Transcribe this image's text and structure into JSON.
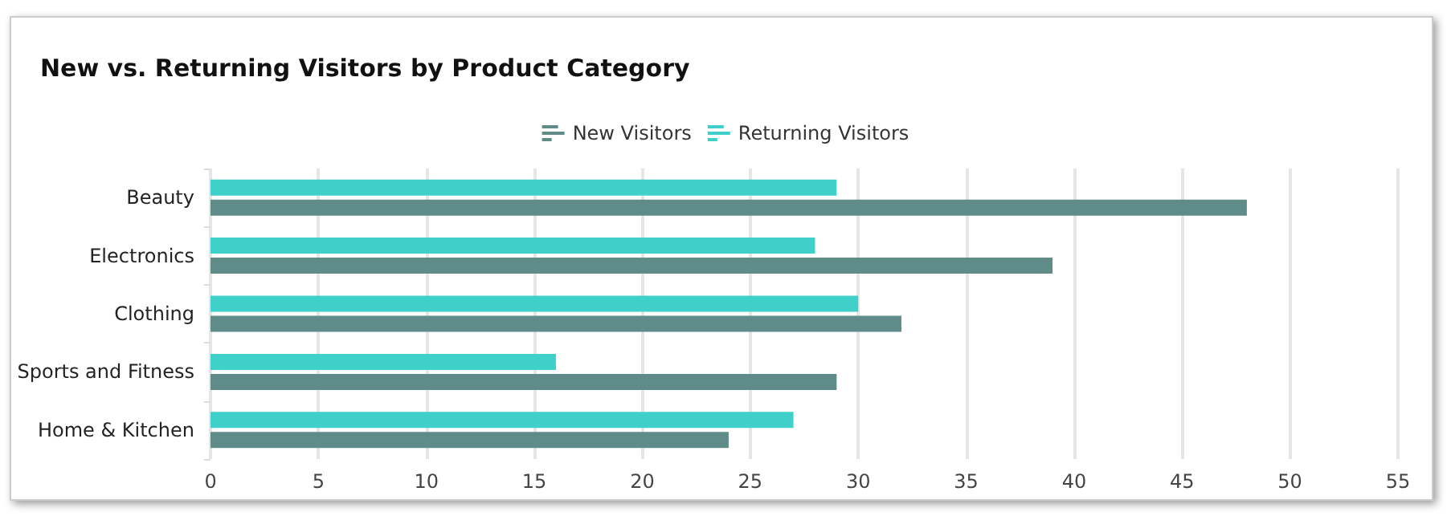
{
  "chart_data": {
    "type": "bar",
    "orientation": "horizontal",
    "title": "New vs. Returning Visitors by Product Category",
    "categories": [
      "Beauty",
      "Electronics",
      "Clothing",
      "Sports and Fitness",
      "Home & Kitchen"
    ],
    "series": [
      {
        "name": "New Visitors",
        "color": "#5f8c88",
        "values": [
          48,
          39,
          32,
          29,
          24
        ]
      },
      {
        "name": "Returning Visitors",
        "color": "#3fd0c9",
        "values": [
          29,
          28,
          30,
          16,
          27
        ]
      }
    ],
    "xlim": [
      0,
      55
    ],
    "xticks": [
      0,
      5,
      10,
      15,
      20,
      25,
      30,
      35,
      40,
      45,
      50,
      55
    ],
    "grid": "x",
    "legend": "top"
  }
}
